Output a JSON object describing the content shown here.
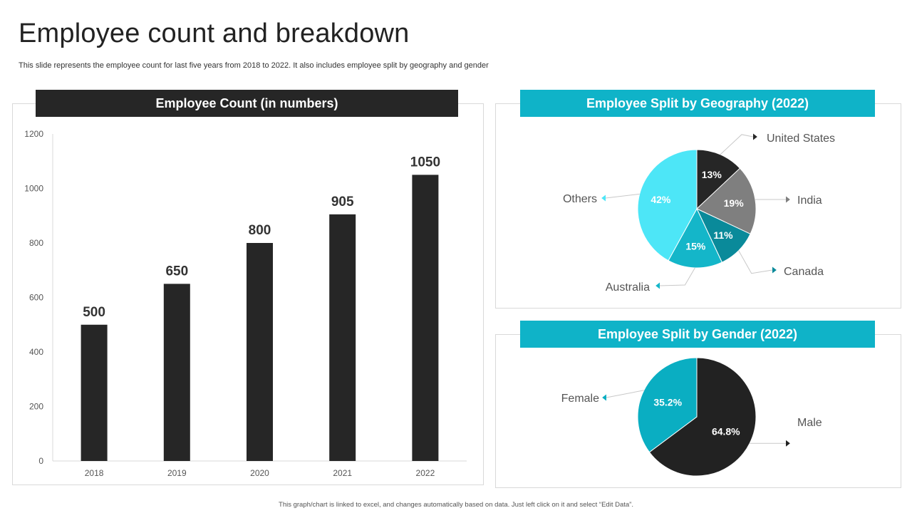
{
  "page": {
    "title": "Employee count and breakdown",
    "subtitle": "This slide represents the employee count for last five years from 2018 to 2022. It also includes employee split by geography and gender",
    "footer": "This graph/chart is linked to excel, and changes automatically based on data. Just left click on it and select “Edit Data”."
  },
  "colors": {
    "dark": "#262626",
    "teal": "#0fb3c8",
    "gray": "#7f7f7f",
    "dark_teal": "#0a8a9a",
    "mid_teal": "#14b6c9",
    "light_cyan": "#4de6f7",
    "female": "#0aaec2",
    "male": "#222222"
  },
  "chart_data": [
    {
      "type": "bar",
      "title": "Employee Count (in numbers)",
      "categories": [
        "2018",
        "2019",
        "2020",
        "2021",
        "2022"
      ],
      "values": [
        500,
        650,
        800,
        905,
        1050
      ],
      "ylim": [
        0,
        1200
      ],
      "yticks": [
        0,
        200,
        400,
        600,
        800,
        1000,
        1200
      ],
      "grid": false
    },
    {
      "type": "pie",
      "title": "Employee Split by Geography (2022)",
      "slices": [
        {
          "label": "United States",
          "value": 13,
          "text": "13%",
          "color": "#262626"
        },
        {
          "label": "India",
          "value": 19,
          "text": "19%",
          "color": "#7f7f7f"
        },
        {
          "label": "Canada",
          "value": 11,
          "text": "11%",
          "color": "#0a8a9a"
        },
        {
          "label": "Australia",
          "value": 15,
          "text": "15%",
          "color": "#14b6c9"
        },
        {
          "label": "Others",
          "value": 42,
          "text": "42%",
          "color": "#4de6f7"
        }
      ]
    },
    {
      "type": "pie",
      "title": "Employee Split by Gender (2022)",
      "slices": [
        {
          "label": "Male",
          "value": 64.8,
          "text": "64.8%",
          "color": "#222222"
        },
        {
          "label": "Female",
          "value": 35.2,
          "text": "35.2%",
          "color": "#0aaec2"
        }
      ]
    }
  ]
}
